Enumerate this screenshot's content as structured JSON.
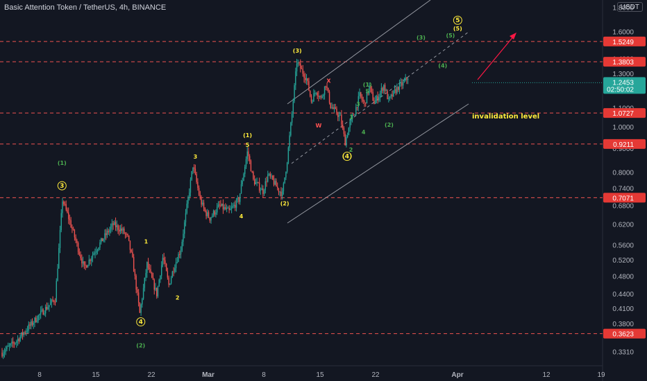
{
  "header": {
    "title": "Basic Attention Token / TetherUS, 4h, BINANCE",
    "currency": "USDT"
  },
  "colors": {
    "background": "#131722",
    "up": "#26a69a",
    "down": "#ef5350",
    "level_line": "#ef5350",
    "level_badge": "#e53935",
    "label_yellow": "#ffeb3b",
    "label_green": "#4caf50",
    "label_red": "#ff5252",
    "channel": "#9598a1",
    "projection": "#ff1744",
    "current_price_badge": "#26a69a"
  },
  "chart_data": {
    "type": "candlestick",
    "y_scale": "log",
    "ylim": [
      0.319,
      1.82
    ],
    "y_ticks": [
      "1.8000",
      "1.6000",
      "1.4000",
      "1.3000",
      "1.2000",
      "1.1000",
      "1.0000",
      "0.9000",
      "0.8000",
      "0.7400",
      "0.6800",
      "0.6200",
      "0.5600",
      "0.5200",
      "0.4800",
      "0.4400",
      "0.4100",
      "0.3800",
      "0.3310"
    ],
    "x_ticks": [
      "8",
      "15",
      "22",
      "Mar",
      "8",
      "15",
      "22",
      "Apr",
      "12",
      "19"
    ],
    "horizontal_levels": [
      "1.5249",
      "1.3803",
      "1.0727",
      "0.9211",
      "0.7071",
      "0.3623"
    ],
    "current_price": "1.2453",
    "countdown": "02:50:02",
    "annotation": "invalidation level",
    "price_path": [
      [
        0,
        0.33
      ],
      [
        3,
        0.35
      ],
      [
        8,
        0.4
      ],
      [
        11,
        0.43
      ],
      [
        12.5,
        0.7
      ],
      [
        14,
        0.63
      ],
      [
        16,
        0.54
      ],
      [
        17,
        0.5
      ],
      [
        19,
        0.54
      ],
      [
        21,
        0.58
      ],
      [
        23,
        0.62
      ],
      [
        25,
        0.6
      ],
      [
        26,
        0.58
      ],
      [
        27,
        0.52
      ],
      [
        28.5,
        0.4
      ],
      [
        30,
        0.51
      ],
      [
        32,
        0.44
      ],
      [
        33.3,
        0.53
      ],
      [
        34.5,
        0.46
      ],
      [
        35.5,
        0.5
      ],
      [
        37,
        0.55
      ],
      [
        39.5,
        0.83
      ],
      [
        41,
        0.7
      ],
      [
        42,
        0.66
      ],
      [
        43,
        0.64
      ],
      [
        45,
        0.68
      ],
      [
        47,
        0.66
      ],
      [
        49,
        0.7
      ],
      [
        50.8,
        0.89
      ],
      [
        52,
        0.77
      ],
      [
        54,
        0.73
      ],
      [
        55,
        0.79
      ],
      [
        56,
        0.77
      ],
      [
        57,
        0.74
      ],
      [
        58,
        0.72
      ],
      [
        59,
        0.85
      ],
      [
        60,
        1.07
      ],
      [
        61,
        1.38
      ],
      [
        63,
        1.27
      ],
      [
        64,
        1.14
      ],
      [
        65,
        1.2
      ],
      [
        66,
        1.15
      ],
      [
        67,
        1.24
      ],
      [
        68,
        1.11
      ],
      [
        70,
        1.05
      ],
      [
        71,
        0.93
      ],
      [
        72,
        1.02
      ],
      [
        73,
        1.08
      ],
      [
        74,
        1.17
      ],
      [
        75,
        1.12
      ],
      [
        76,
        1.22
      ],
      [
        77,
        1.13
      ],
      [
        78,
        1.17
      ],
      [
        79,
        1.23
      ],
      [
        80,
        1.14
      ],
      [
        81,
        1.18
      ],
      [
        82,
        1.22
      ],
      [
        83,
        1.24
      ],
      [
        84,
        1.28
      ]
    ],
    "labels": [
      {
        "text": "(1)",
        "t": 12.4,
        "v": 0.84,
        "color": "green"
      },
      {
        "text": "3",
        "t": 12.4,
        "v": 0.75,
        "color": "yellow",
        "circle": true
      },
      {
        "text": "1",
        "t": 29.8,
        "v": 0.57,
        "color": "yellow"
      },
      {
        "text": "4",
        "t": 28.7,
        "v": 0.384,
        "color": "yellow",
        "circle": true
      },
      {
        "text": "(2)",
        "t": 28.7,
        "v": 0.342,
        "color": "green"
      },
      {
        "text": "2",
        "t": 36.3,
        "v": 0.433,
        "color": "yellow"
      },
      {
        "text": "3",
        "t": 40,
        "v": 0.866,
        "color": "yellow"
      },
      {
        "text": "4",
        "t": 49.5,
        "v": 0.646,
        "color": "yellow"
      },
      {
        "text": "(1)",
        "t": 50.8,
        "v": 0.962,
        "color": "yellow"
      },
      {
        "text": "5",
        "t": 50.8,
        "v": 0.918,
        "color": "yellow"
      },
      {
        "text": "(2)",
        "t": 58.5,
        "v": 0.688,
        "color": "yellow"
      },
      {
        "text": "(3)",
        "t": 61.1,
        "v": 1.459,
        "color": "yellow"
      },
      {
        "text": "X",
        "t": 67.6,
        "v": 1.258,
        "color": "red"
      },
      {
        "text": "W",
        "t": 65.5,
        "v": 1.009,
        "color": "red"
      },
      {
        "text": "1",
        "t": 72.3,
        "v": 1.053,
        "color": "green"
      },
      {
        "text": "3",
        "t": 73.7,
        "v": 1.122,
        "color": "green"
      },
      {
        "text": "5",
        "t": 75.6,
        "v": 1.194,
        "color": "green"
      },
      {
        "text": "(1)",
        "t": 75.6,
        "v": 1.235,
        "color": "green"
      },
      {
        "text": "2",
        "t": 72.2,
        "v": 0.896,
        "color": "green"
      },
      {
        "text": "(4)",
        "t": 71.4,
        "v": 0.867,
        "color": "yellow",
        "circle": true
      },
      {
        "text": "4",
        "t": 74.8,
        "v": 0.977,
        "color": "green"
      },
      {
        "text": "(2)",
        "t": 80.1,
        "v": 1.013,
        "color": "green"
      },
      {
        "text": "(3)",
        "t": 86.7,
        "v": 1.555,
        "color": "green"
      },
      {
        "text": "(4)",
        "t": 91.2,
        "v": 1.356,
        "color": "green"
      },
      {
        "text": "(5)",
        "t": 92.8,
        "v": 1.571,
        "color": "green"
      },
      {
        "text": "5",
        "t": 94.3,
        "v": 1.693,
        "color": "yellow",
        "circle": true
      },
      {
        "text": "(5)",
        "t": 94.3,
        "v": 1.626,
        "color": "yellow"
      }
    ]
  }
}
